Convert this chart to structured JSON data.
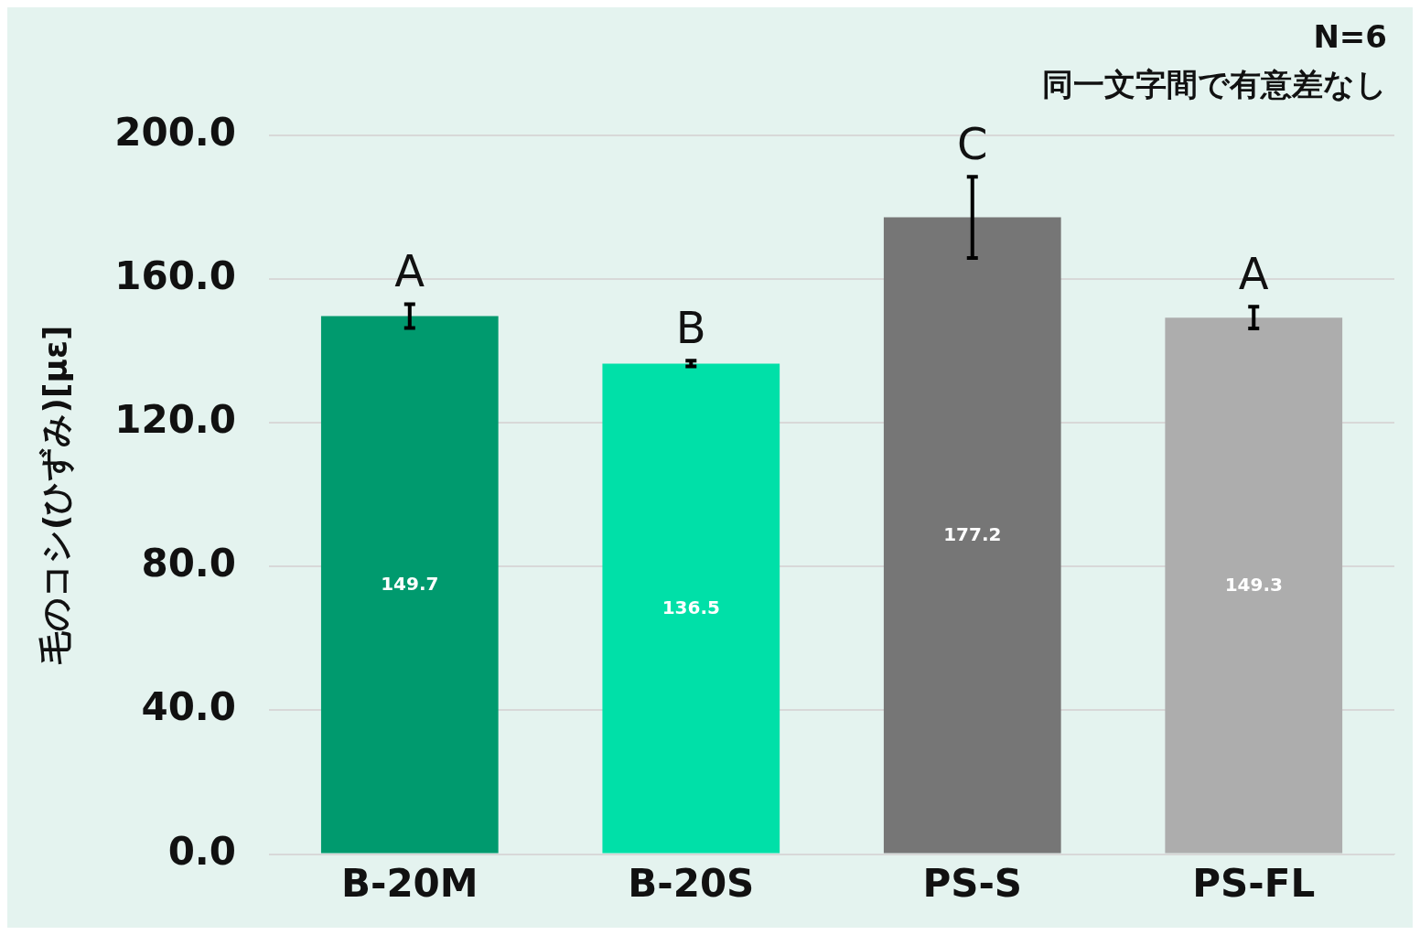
{
  "chart_data": {
    "type": "bar",
    "ylabel": "毛のコシ(ひずみ)[με]",
    "categories": [
      "B-20M",
      "B-20S",
      "PS-S",
      "PS-FL"
    ],
    "values": [
      149.7,
      136.5,
      177.2,
      149.3
    ],
    "colors": [
      "#009a6e",
      "#00e0a8",
      "#767676",
      "#adadad"
    ],
    "errors": [
      3.3,
      0.8,
      11.3,
      3.0
    ],
    "data_labels": true,
    "ylim": [
      0,
      200
    ],
    "yticks": [
      {
        "value": 0,
        "label": "0.0"
      },
      {
        "value": 40,
        "label": "40.0"
      },
      {
        "value": 80,
        "label": "80.0"
      },
      {
        "value": 120,
        "label": "120.0"
      },
      {
        "value": 160,
        "label": "160.0"
      },
      {
        "value": 200,
        "label": "200.0"
      }
    ],
    "grid": "y",
    "legend": false,
    "annotations": [
      "N=6",
      "同一文字間で有意差なし",
      {
        "text": "A",
        "x": "B-20M",
        "y": 153
      },
      {
        "text": "B",
        "x": "B-20S",
        "y": 137.3
      },
      {
        "text": "C",
        "x": "PS-S",
        "y": 188.5
      },
      {
        "text": "A",
        "x": "PS-FL",
        "y": 152.3
      }
    ]
  }
}
